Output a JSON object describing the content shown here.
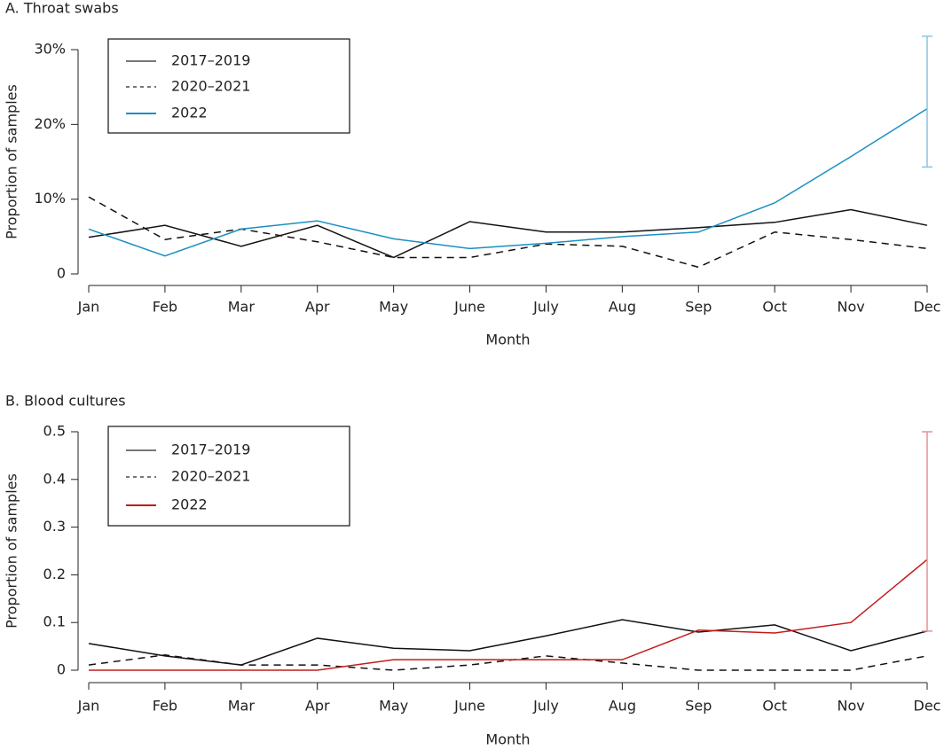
{
  "chart_data": [
    {
      "type": "line",
      "title": "A. Throat swabs",
      "x_label": "Month",
      "y_label": "Proportion of samples",
      "categories": [
        "Jan",
        "Feb",
        "Mar",
        "Apr",
        "May",
        "June",
        "July",
        "Aug",
        "Sep",
        "Oct",
        "Nov",
        "Dec"
      ],
      "ylim": [
        0,
        30
      ],
      "yticks": [
        0,
        {
          "value": 10,
          "label": "10%"
        },
        {
          "value": 20,
          "label": "20%"
        },
        {
          "value": 30,
          "label": "30%"
        }
      ],
      "series": [
        {
          "name": "2017–2019",
          "color": "#111111",
          "dash": false,
          "values": [
            4.9,
            6.5,
            3.7,
            6.5,
            2.2,
            7.0,
            5.6,
            5.6,
            6.2,
            6.9,
            8.6,
            6.5
          ]
        },
        {
          "name": "2020–2021",
          "color": "#111111",
          "dash": true,
          "values": [
            10.3,
            4.6,
            6.0,
            4.3,
            2.2,
            2.2,
            4.0,
            3.7,
            0.9,
            5.6,
            4.6,
            3.4
          ]
        },
        {
          "name": "2022",
          "color": "#1a8fc4",
          "dash": false,
          "values": [
            6.0,
            2.4,
            6.0,
            7.1,
            4.7,
            3.4,
            4.1,
            5.0,
            5.6,
            9.5,
            15.7,
            22.1
          ],
          "error_color": "#8cc3e0",
          "error_low": [
            null,
            null,
            null,
            null,
            null,
            null,
            null,
            null,
            null,
            null,
            null,
            14.3
          ],
          "error_high": [
            null,
            null,
            null,
            null,
            null,
            null,
            null,
            null,
            null,
            null,
            null,
            31.8
          ]
        }
      ]
    },
    {
      "type": "line",
      "title": "B. Blood cultures",
      "x_label": "Month",
      "y_label": "Proportion of samples",
      "categories": [
        "Jan",
        "Feb",
        "Mar",
        "Apr",
        "May",
        "June",
        "July",
        "Aug",
        "Sep",
        "Oct",
        "Nov",
        "Dec"
      ],
      "ylim": [
        0,
        0.5
      ],
      "yticks": [
        0,
        0.1,
        0.2,
        0.3,
        0.4,
        0.5
      ],
      "series": [
        {
          "name": "2017–2019",
          "color": "#111111",
          "dash": false,
          "values": [
            0.056,
            0.03,
            0.011,
            0.067,
            0.046,
            0.041,
            0.072,
            0.106,
            0.08,
            0.095,
            0.041,
            0.082
          ]
        },
        {
          "name": "2020–2021",
          "color": "#111111",
          "dash": true,
          "values": [
            0.011,
            0.032,
            0.011,
            0.011,
            0,
            0.011,
            0.03,
            0.015,
            0,
            0,
            0,
            0.03
          ]
        },
        {
          "name": "2022",
          "color": "#c41a1a",
          "dash": false,
          "values": [
            0,
            0,
            0,
            0,
            0.022,
            0.022,
            0.022,
            0.022,
            0.084,
            0.078,
            0.1,
            0.232
          ],
          "error_color": "#e89090",
          "error_low": [
            null,
            null,
            null,
            null,
            null,
            null,
            null,
            null,
            null,
            null,
            null,
            0.082
          ],
          "error_high": [
            null,
            null,
            null,
            null,
            null,
            null,
            null,
            null,
            null,
            null,
            null,
            0.5
          ]
        }
      ]
    }
  ]
}
